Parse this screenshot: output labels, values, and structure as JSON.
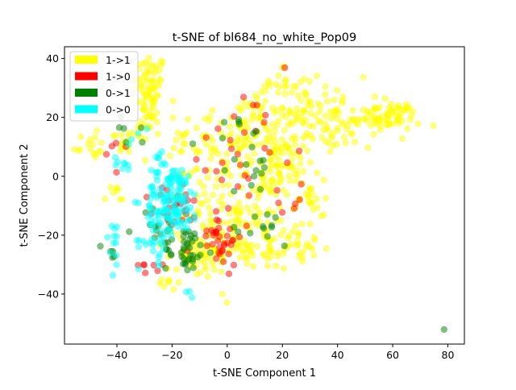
{
  "chart_data": {
    "type": "scatter",
    "title": "t-SNE of bl684_no_white_Pop09",
    "xlabel": "t-SNE Component 1",
    "ylabel": "t-SNE Component 2",
    "xlim": [
      -59,
      86
    ],
    "ylim": [
      -57,
      44
    ],
    "xticks": [
      -40,
      -20,
      0,
      20,
      40,
      60,
      80
    ],
    "yticks": [
      -40,
      -20,
      0,
      20,
      40
    ],
    "grid": false,
    "legend_position": "top-left",
    "point_alpha": 0.5,
    "series": [
      {
        "name": "1->1",
        "color": "#ffff00",
        "clusters": [
          {
            "cx": -28,
            "cy": 30,
            "sx": 3,
            "sy": 6,
            "n": 70
          },
          {
            "cx": -50,
            "cy": 10,
            "sx": 3,
            "sy": 2,
            "n": 14
          },
          {
            "cx": -37,
            "cy": 12,
            "sx": 4,
            "sy": 3,
            "n": 20
          },
          {
            "cx": -30,
            "cy": 18,
            "sx": 2,
            "sy": 3,
            "n": 12
          },
          {
            "cx": 5,
            "cy": 12,
            "sx": 14,
            "sy": 8,
            "n": 160
          },
          {
            "cx": 30,
            "cy": 22,
            "sx": 10,
            "sy": 6,
            "n": 90
          },
          {
            "cx": 58,
            "cy": 20,
            "sx": 6,
            "sy": 2.5,
            "n": 70
          },
          {
            "cx": 42,
            "cy": 16,
            "sx": 5,
            "sy": 3,
            "n": 25
          },
          {
            "cx": 22,
            "cy": 2,
            "sx": 6,
            "sy": 4,
            "n": 40
          },
          {
            "cx": 30,
            "cy": -8,
            "sx": 3,
            "sy": 3,
            "n": 20
          },
          {
            "cx": 5,
            "cy": -12,
            "sx": 10,
            "sy": 8,
            "n": 140
          },
          {
            "cx": -10,
            "cy": -28,
            "sx": 6,
            "sy": 4,
            "n": 60
          },
          {
            "cx": 12,
            "cy": -24,
            "sx": 8,
            "sy": 4,
            "n": 40
          },
          {
            "cx": 30,
            "cy": -24,
            "sx": 4,
            "sy": 2,
            "n": 18
          },
          {
            "cx": 15,
            "cy": 30,
            "sx": 6,
            "sy": 3,
            "n": 15
          },
          {
            "cx": -40,
            "cy": -8,
            "sx": 3,
            "sy": 3,
            "n": 8
          },
          {
            "cx": -22,
            "cy": -36,
            "sx": 2,
            "sy": 1.5,
            "n": 8
          }
        ]
      },
      {
        "name": "1->0",
        "color": "#ff0000",
        "clusters": [
          {
            "cx": -19,
            "cy": -11,
            "sx": 4,
            "sy": 4,
            "n": 25
          },
          {
            "cx": -4,
            "cy": -20,
            "sx": 5,
            "sy": 5,
            "n": 40
          },
          {
            "cx": 6,
            "cy": 6,
            "sx": 9,
            "sy": 9,
            "n": 22
          },
          {
            "cx": -29,
            "cy": -30,
            "sx": 3,
            "sy": 2,
            "n": 7
          },
          {
            "cx": 25,
            "cy": -8,
            "sx": 4,
            "sy": 4,
            "n": 6
          },
          {
            "cx": -38,
            "cy": 8,
            "sx": 3,
            "sy": 3,
            "n": 5
          },
          {
            "cx": 10,
            "cy": 20,
            "sx": 5,
            "sy": 4,
            "n": 8
          }
        ]
      },
      {
        "name": "0->1",
        "color": "#008000",
        "clusters": [
          {
            "cx": -15,
            "cy": -25,
            "sx": 4,
            "sy": 4,
            "n": 40
          },
          {
            "cx": -25,
            "cy": -18,
            "sx": 4,
            "sy": 4,
            "n": 15
          },
          {
            "cx": 15,
            "cy": -18,
            "sx": 4,
            "sy": 3,
            "n": 12
          },
          {
            "cx": 4,
            "cy": 2,
            "sx": 7,
            "sy": 8,
            "n": 15
          },
          {
            "cx": 8,
            "cy": 20,
            "sx": 4,
            "sy": 3,
            "n": 6
          },
          {
            "cx": -35,
            "cy": 14,
            "sx": 3,
            "sy": 3,
            "n": 6
          },
          {
            "cx": -42,
            "cy": -26,
            "sx": 2,
            "sy": 2,
            "n": 5
          },
          {
            "cx": 78.5,
            "cy": -52,
            "sx": 0.1,
            "sy": 0.1,
            "n": 1
          }
        ]
      },
      {
        "name": "0->0",
        "color": "#00ffff",
        "clusters": [
          {
            "cx": -20,
            "cy": -8,
            "sx": 5,
            "sy": 6,
            "n": 140
          },
          {
            "cx": -26,
            "cy": -22,
            "sx": 3,
            "sy": 4,
            "n": 25
          },
          {
            "cx": -42,
            "cy": -22,
            "sx": 2,
            "sy": 5,
            "n": 12
          },
          {
            "cx": -37,
            "cy": 4,
            "sx": 2,
            "sy": 3,
            "n": 8
          },
          {
            "cx": -25,
            "cy": 6,
            "sx": 3,
            "sy": 2,
            "n": 8
          },
          {
            "cx": -14,
            "cy": -40,
            "sx": 1,
            "sy": 1,
            "n": 3
          },
          {
            "cx": -33,
            "cy": 13,
            "sx": 2,
            "sy": 2,
            "n": 4
          }
        ]
      }
    ]
  }
}
